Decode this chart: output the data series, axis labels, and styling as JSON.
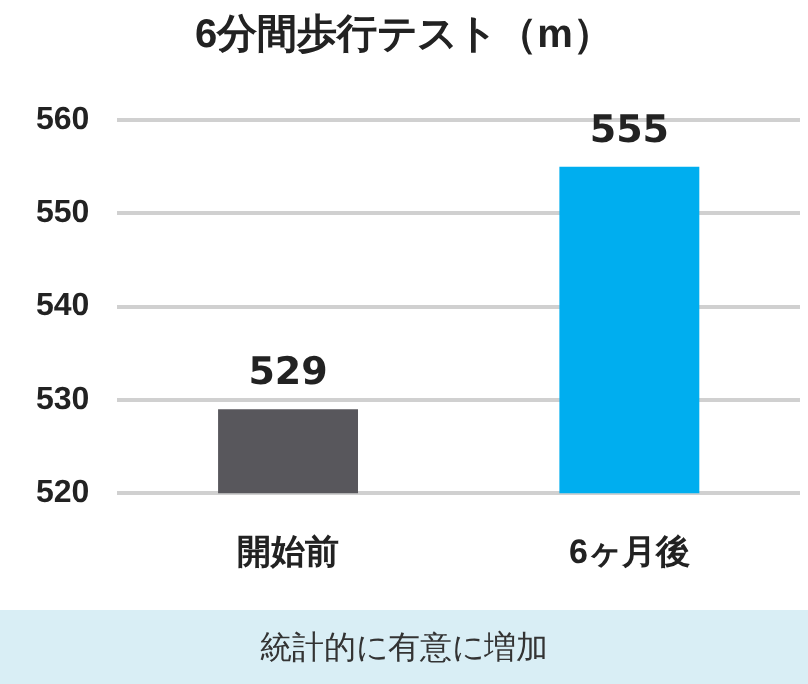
{
  "chart_data": {
    "type": "bar",
    "title": "6分間歩行テスト（m）",
    "categories": [
      "開始前",
      "6ヶ月後"
    ],
    "values": [
      529,
      555
    ],
    "colors": [
      "#58575c",
      "#00aeef"
    ],
    "ylim": [
      520,
      560
    ],
    "yticks": [
      520,
      530,
      540,
      550,
      560
    ],
    "grid": "y",
    "data_labels": true,
    "annotations": [
      "統計的に有意に増加"
    ]
  }
}
